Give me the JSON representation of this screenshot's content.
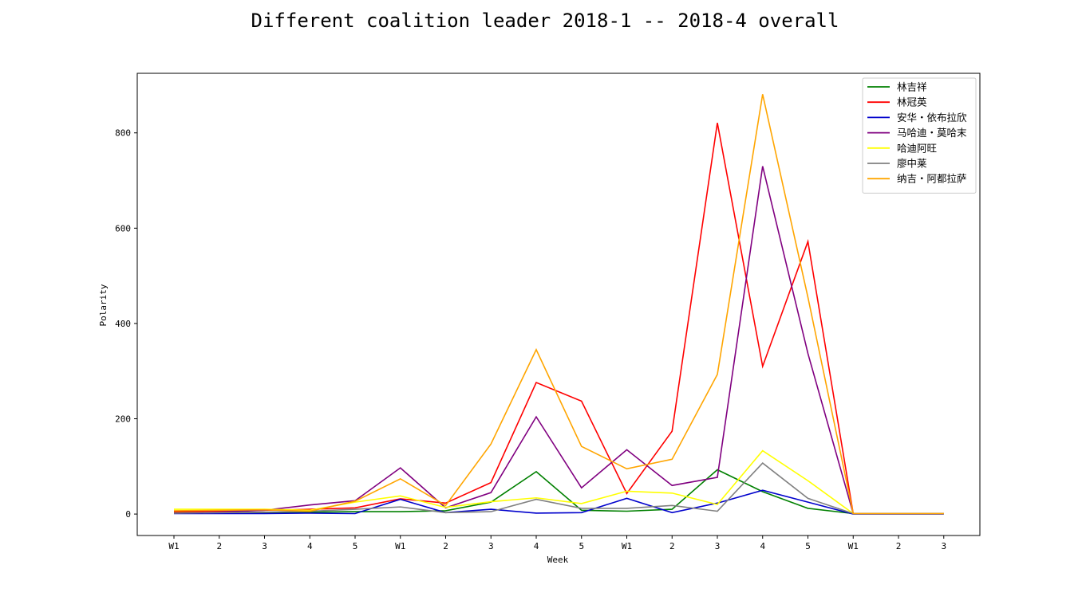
{
  "chart_data": {
    "type": "line",
    "title": "Different coalition leader 2018-1 -- 2018-4 overall",
    "xlabel": "Week",
    "ylabel": "Polarity",
    "categories": [
      "W1",
      "2",
      "3",
      "4",
      "5",
      "W1",
      "2",
      "3",
      "4",
      "5",
      "W1",
      "2",
      "3",
      "4",
      "5",
      "W1",
      "2",
      "3"
    ],
    "ylim": [
      -45,
      925
    ],
    "yticks": [
      0,
      200,
      400,
      600,
      800
    ],
    "grid": false,
    "legend_position": "top-right",
    "series": [
      {
        "name": "林吉祥",
        "color": "#008000",
        "values": [
          3,
          3,
          2,
          4,
          5,
          5,
          7,
          25,
          89,
          8,
          6,
          10,
          93,
          47,
          12,
          1,
          1,
          1
        ]
      },
      {
        "name": "林冠英",
        "color": "#ff0000",
        "values": [
          5,
          6,
          8,
          10,
          13,
          32,
          23,
          66,
          276,
          237,
          43,
          174,
          821,
          310,
          572,
          1,
          1,
          1
        ]
      },
      {
        "name": "安华・依布拉欣",
        "color": "#0000cc",
        "values": [
          1,
          1,
          1,
          2,
          1,
          31,
          3,
          10,
          2,
          3,
          33,
          3,
          23,
          50,
          25,
          0,
          0,
          0
        ]
      },
      {
        "name": "马哈迪・莫哈末",
        "color": "#800080",
        "values": [
          2,
          4,
          8,
          19,
          28,
          97,
          13,
          45,
          204,
          55,
          135,
          60,
          77,
          730,
          337,
          1,
          1,
          1
        ]
      },
      {
        "name": "哈迪阿旺",
        "color": "#ffff00",
        "values": [
          10,
          10,
          10,
          8,
          25,
          38,
          14,
          26,
          34,
          22,
          48,
          44,
          20,
          133,
          70,
          1,
          1,
          1
        ]
      },
      {
        "name": "廖中莱",
        "color": "#808080",
        "values": [
          2,
          3,
          4,
          6,
          10,
          15,
          3,
          5,
          31,
          12,
          12,
          18,
          6,
          107,
          33,
          1,
          1,
          1
        ]
      },
      {
        "name": "纳吉・阿都拉萨",
        "color": "#ffa500",
        "values": [
          7,
          8,
          9,
          6,
          27,
          74,
          18,
          147,
          345,
          142,
          95,
          115,
          293,
          881,
          455,
          1,
          1,
          1
        ]
      }
    ]
  }
}
